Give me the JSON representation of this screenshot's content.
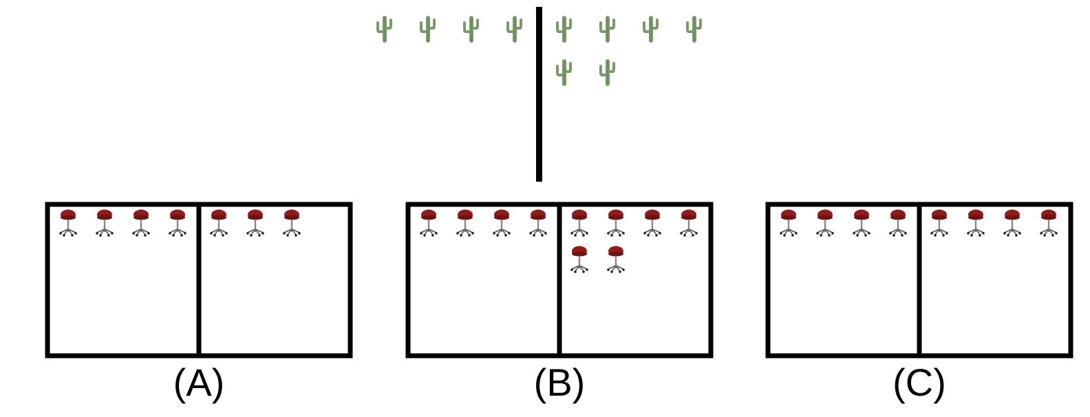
{
  "question": {
    "left_count": 4,
    "right_count": 6,
    "item_icon": "cactus-icon",
    "item_color": "#7a9a6a"
  },
  "options": [
    {
      "label": "(A)",
      "left_count": 4,
      "right_count": 3
    },
    {
      "label": "(B)",
      "left_count": 4,
      "right_count": 6
    },
    {
      "label": "(C)",
      "left_count": 4,
      "right_count": 4
    }
  ],
  "option_item_icon": "stool-icon",
  "option_item_color": "#8e1c1c",
  "frame_color": "#000000"
}
